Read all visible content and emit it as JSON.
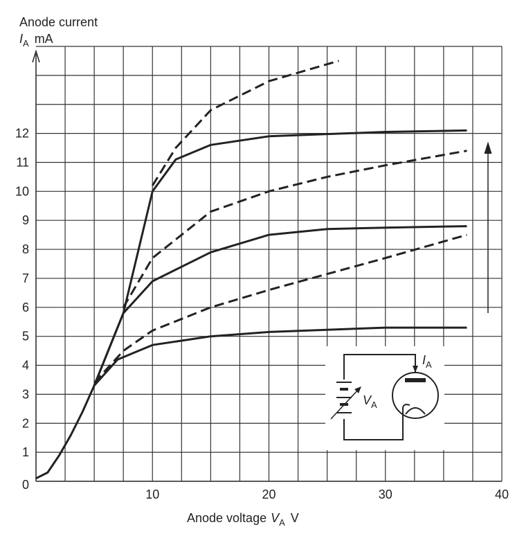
{
  "chart_data": {
    "type": "line",
    "y_label": {
      "text": "Anode current",
      "symbol": "I",
      "subscript": "A",
      "unit": "mA"
    },
    "x_label": {
      "text": "Anode voltage",
      "symbol": "V",
      "subscript": "A",
      "unit": "V"
    },
    "circuit": {
      "current_symbol": "I",
      "current_subscript": "A",
      "voltage_symbol": "V",
      "voltage_subscript": "A"
    },
    "xlim": [
      0,
      40
    ],
    "ylim": [
      0,
      15
    ],
    "xticks": [
      0,
      10,
      20,
      30,
      40
    ],
    "yticks": [
      0,
      1,
      2,
      3,
      4,
      5,
      6,
      7,
      8,
      9,
      10,
      11,
      12
    ],
    "xgrid": [
      2.5,
      5,
      7.5,
      10,
      12.5,
      15,
      17.5,
      20,
      22.5,
      25,
      27.5,
      30,
      32.5,
      35,
      37.5,
      40
    ],
    "ygrid": [
      1,
      2,
      3,
      4,
      5,
      6,
      7,
      8,
      9,
      10,
      11,
      12,
      13,
      14,
      15
    ],
    "grid": true,
    "series": [
      {
        "color": "#222",
        "dashed": false,
        "x": [
          0,
          1,
          2,
          3,
          4,
          5,
          7,
          10,
          15,
          20,
          30,
          37
        ],
        "values": [
          0.1,
          0.3,
          0.9,
          1.6,
          2.4,
          3.3,
          4.2,
          4.7,
          5.0,
          5.15,
          5.3,
          5.3
        ]
      },
      {
        "color": "#222",
        "dashed": true,
        "x": [
          5,
          7.5,
          10,
          15,
          20,
          30,
          37
        ],
        "values": [
          3.4,
          4.5,
          5.2,
          6.0,
          6.6,
          7.7,
          8.5
        ]
      },
      {
        "color": "#222",
        "dashed": false,
        "x": [
          5,
          7.5,
          10,
          15,
          20,
          25,
          30,
          37
        ],
        "values": [
          3.3,
          5.8,
          6.9,
          7.9,
          8.5,
          8.7,
          8.75,
          8.8
        ]
      },
      {
        "color": "#222",
        "dashed": true,
        "x": [
          7.5,
          10,
          15,
          20,
          25,
          30,
          37
        ],
        "values": [
          6.0,
          7.7,
          9.3,
          10.0,
          10.5,
          10.9,
          11.4
        ]
      },
      {
        "color": "#222",
        "dashed": false,
        "x": [
          5,
          7.5,
          10,
          12,
          15,
          20,
          30,
          37
        ],
        "values": [
          3.3,
          5.8,
          10.0,
          11.1,
          11.6,
          11.9,
          12.05,
          12.1
        ]
      },
      {
        "color": "#222",
        "dashed": true,
        "x": [
          10,
          12,
          15,
          20,
          26
        ],
        "values": [
          10.2,
          11.5,
          12.8,
          13.8,
          14.5
        ]
      }
    ]
  }
}
